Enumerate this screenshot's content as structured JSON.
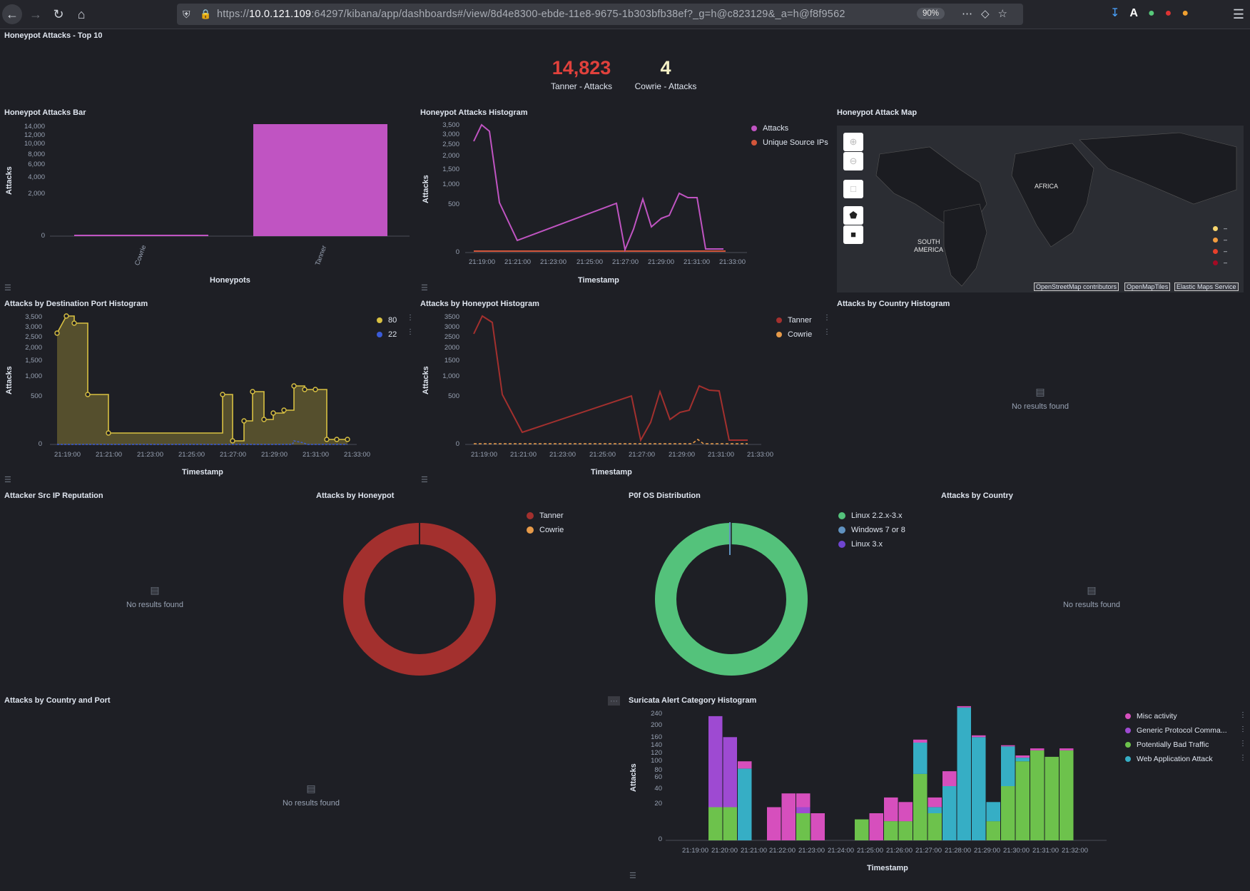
{
  "browser": {
    "url_prefix": "https://",
    "url_host": "10.0.121.109",
    "url_rest": ":64297/kibana/app/dashboards#/view/8d4e8300-ebde-11e8-9675-1b303bfb38ef?_g=h@c823129&_a=h@f8f9562",
    "zoom": "90%"
  },
  "top10": {
    "title": "Honeypot Attacks - Top 10",
    "metrics": [
      {
        "value": "14,823",
        "label": "Tanner - Attacks",
        "color": "#e0413c"
      },
      {
        "value": "4",
        "label": "Cowrie - Attacks",
        "color": "#f5f1c6"
      }
    ]
  },
  "bar_panel": {
    "title": "Honeypot Attacks Bar",
    "ylabel": "Attacks",
    "xlabel": "Honeypots",
    "yticks": [
      "14,000",
      "12,000",
      "10,000",
      "8,000",
      "6,000",
      "4,000",
      "2,000",
      "0"
    ],
    "xticks": [
      "Cowrie",
      "Tanner"
    ]
  },
  "hist_panel": {
    "title": "Honeypot Attacks Histogram",
    "ylabel": "Attacks",
    "xlabel": "Timestamp",
    "yticks": [
      "3,500",
      "3,000",
      "2,500",
      "2,000",
      "1,500",
      "1,000",
      "500",
      "0"
    ],
    "xticks": [
      "21:19:00",
      "21:21:00",
      "21:23:00",
      "21:25:00",
      "21:27:00",
      "21:29:00",
      "21:31:00",
      "21:33:00"
    ],
    "legend": [
      "Attacks",
      "Unique Source IPs"
    ]
  },
  "map_panel": {
    "title": "Honeypot Attack Map",
    "labels": {
      "africa": "AFRICA",
      "south_america_1": "SOUTH",
      "south_america_2": "AMERICA"
    },
    "legend_dash": "–",
    "attribution": [
      "OpenStreetMap contributors",
      "OpenMapTiles",
      "Elastic Maps Service"
    ]
  },
  "port_panel": {
    "title": "Attacks by Destination Port Histogram",
    "ylabel": "Attacks",
    "xlabel": "Timestamp",
    "yticks": [
      "3,500",
      "3,000",
      "2,500",
      "2,000",
      "1,500",
      "1,000",
      "500",
      "0"
    ],
    "xticks": [
      "21:19:00",
      "21:21:00",
      "21:23:00",
      "21:25:00",
      "21:27:00",
      "21:29:00",
      "21:31:00",
      "21:33:00"
    ],
    "legend": [
      "80",
      "22"
    ]
  },
  "honeypot_hist_panel": {
    "title": "Attacks by Honeypot Histogram",
    "ylabel": "Attacks",
    "xlabel": "Timestamp",
    "yticks": [
      "3500",
      "3000",
      "2500",
      "2000",
      "1500",
      "1,000",
      "500",
      "0"
    ],
    "xticks": [
      "21:19:00",
      "21:21:00",
      "21:23:00",
      "21:25:00",
      "21:27:00",
      "21:29:00",
      "21:31:00",
      "21:33:00"
    ],
    "legend": [
      "Tanner",
      "Cowrie"
    ]
  },
  "country_hist_panel": {
    "title": "Attacks by Country Histogram",
    "no_results": "No results found"
  },
  "reputation_panel": {
    "title": "Attacker Src IP Reputation",
    "no_results": "No results found"
  },
  "honeypot_donut": {
    "title": "Attacks by Honeypot",
    "legend": [
      "Tanner",
      "Cowrie"
    ]
  },
  "p0f_donut": {
    "title": "P0f OS Distribution",
    "legend": [
      "Linux 2.2.x-3.x",
      "Windows 7 or 8",
      "Linux 3.x"
    ]
  },
  "country_panel": {
    "title": "Attacks by Country",
    "no_results": "No results found"
  },
  "country_port_panel": {
    "title": "Attacks by Country and Port",
    "no_results": "No results found"
  },
  "suricata_panel": {
    "title": "Suricata Alert Category Histogram",
    "ylabel": "Attacks",
    "xlabel": "Timestamp",
    "yticks": [
      "240",
      "200",
      "160",
      "140",
      "120",
      "100",
      "80",
      "60",
      "40",
      "20",
      "0"
    ],
    "xticks": [
      "21:19:00",
      "21:20:00",
      "21:21:00",
      "21:22:00",
      "21:23:00",
      "21:24:00",
      "21:25:00",
      "21:26:00",
      "21:27:00",
      "21:28:00",
      "21:29:00",
      "21:30:00",
      "21:31:00",
      "21:32:00"
    ],
    "legend": [
      "Misc activity",
      "Generic Protocol Comma...",
      "Potentially Bad Traffic",
      "Web Application Attack"
    ]
  },
  "colors": {
    "attacks_pink": "#c054c2",
    "unique_ips": "#d2553a",
    "port80": "#d8c042",
    "port22": "#3a5bd8",
    "tanner": "#a3302e",
    "cowrie": "#e69a49",
    "linux22": "#54c27b",
    "win78": "#6092c0",
    "linux3": "#6f45d0",
    "misc": "#d64fbd",
    "generic": "#9e4ad2",
    "bad_traffic": "#6dc24c",
    "web_attack": "#36aec5"
  },
  "chart_data": [
    {
      "type": "bar",
      "title": "Honeypot Attacks Bar",
      "categories": [
        "Cowrie",
        "Tanner"
      ],
      "values": [
        4,
        14823
      ],
      "xlabel": "Honeypots",
      "ylabel": "Attacks",
      "ylim": [
        0,
        14823
      ]
    },
    {
      "type": "line",
      "title": "Honeypot Attacks Histogram",
      "xlabel": "Timestamp",
      "ylabel": "Attacks",
      "x": [
        "21:19:00",
        "21:19:30",
        "21:20:00",
        "21:20:30",
        "21:21:00",
        "21:26:30",
        "21:27:00",
        "21:27:30",
        "21:28:00",
        "21:28:30",
        "21:29:00",
        "21:29:30",
        "21:30:00",
        "21:30:30",
        "21:31:00",
        "21:31:30",
        "21:32:00"
      ],
      "series": [
        {
          "name": "Attacks",
          "values": [
            2650,
            3500,
            3200,
            500,
            60,
            510,
            20,
            130,
            520,
            200,
            300,
            340,
            700,
            630,
            630,
            60,
            60
          ]
        },
        {
          "name": "Unique Source IPs",
          "values": [
            15,
            15,
            15,
            15,
            15,
            15,
            15,
            15,
            15,
            15,
            15,
            15,
            15,
            15,
            15,
            15,
            15
          ]
        }
      ]
    },
    {
      "type": "area",
      "title": "Attacks by Destination Port Histogram",
      "xlabel": "Timestamp",
      "ylabel": "Attacks",
      "x": [
        "21:18:30",
        "21:19:00",
        "21:19:30",
        "21:20:00",
        "21:21:00",
        "21:26:30",
        "21:27:00",
        "21:27:30",
        "21:28:00",
        "21:28:30",
        "21:29:00",
        "21:29:30",
        "21:30:00",
        "21:30:30",
        "21:31:00",
        "21:31:30",
        "21:32:00"
      ],
      "series": [
        {
          "name": "80",
          "values": [
            2700,
            3500,
            3200,
            500,
            110,
            540,
            20,
            220,
            580,
            230,
            300,
            330,
            730,
            670,
            640,
            30,
            30
          ]
        },
        {
          "name": "22",
          "values": [
            0,
            0,
            0,
            0,
            0,
            0,
            0,
            0,
            0,
            0,
            0,
            0,
            4,
            0,
            0,
            0,
            0
          ]
        }
      ]
    },
    {
      "type": "line",
      "title": "Attacks by Honeypot Histogram",
      "xlabel": "Timestamp",
      "ylabel": "Attacks",
      "x": [
        "21:19:00",
        "21:19:30",
        "21:20:00",
        "21:20:30",
        "21:21:00",
        "21:26:30",
        "21:27:00",
        "21:27:30",
        "21:28:00",
        "21:28:30",
        "21:29:00",
        "21:29:30",
        "21:30:00",
        "21:30:30",
        "21:31:00",
        "21:31:30",
        "21:32:00"
      ],
      "series": [
        {
          "name": "Tanner",
          "values": [
            2650,
            3500,
            3200,
            500,
            100,
            510,
            20,
            200,
            600,
            240,
            330,
            360,
            730,
            660,
            650,
            30,
            30
          ]
        },
        {
          "name": "Cowrie",
          "values": [
            0,
            0,
            0,
            0,
            0,
            0,
            0,
            0,
            0,
            0,
            0,
            0,
            4,
            0,
            0,
            0,
            0
          ]
        }
      ]
    },
    {
      "type": "pie",
      "title": "Attacks by Honeypot",
      "categories": [
        "Tanner",
        "Cowrie"
      ],
      "values": [
        14823,
        4
      ]
    },
    {
      "type": "pie",
      "title": "P0f OS Distribution",
      "categories": [
        "Linux 2.2.x-3.x",
        "Windows 7 or 8",
        "Linux 3.x"
      ],
      "values": [
        99,
        0.5,
        0.5
      ]
    },
    {
      "type": "bar",
      "stacked": true,
      "title": "Suricata Alert Category Histogram",
      "xlabel": "Timestamp",
      "ylabel": "Attacks",
      "categories": [
        "21:19:30",
        "21:20:00",
        "21:20:30",
        "21:21:00",
        "21:21:30",
        "21:22:00",
        "21:22:30",
        "21:23:00",
        "21:24:30",
        "21:25:00",
        "21:25:30",
        "21:26:00",
        "21:26:30",
        "21:27:00",
        "21:27:30",
        "21:28:00",
        "21:28:30",
        "21:29:00",
        "21:29:30",
        "21:30:00",
        "21:30:30",
        "21:31:00",
        "21:31:30"
      ],
      "series": [
        {
          "name": "Misc activity",
          "values": [
            0,
            0,
            15,
            0,
            15,
            30,
            15,
            10,
            0,
            10,
            20,
            15,
            8,
            10,
            25,
            5,
            5,
            0,
            3,
            5,
            5,
            0,
            5
          ]
        },
        {
          "name": "Generic Protocol Comma...",
          "values": [
            195,
            130,
            0,
            0,
            0,
            0,
            5,
            0,
            0,
            0,
            0,
            0,
            0,
            0,
            0,
            0,
            0,
            0,
            0,
            0,
            0,
            0,
            0
          ]
        },
        {
          "name": "Potentially Bad Traffic",
          "values": [
            15,
            15,
            0,
            0,
            0,
            0,
            10,
            0,
            6,
            0,
            5,
            5,
            60,
            10,
            0,
            0,
            0,
            5,
            40,
            85,
            110,
            95,
            110
          ]
        },
        {
          "name": "Web Application Attack",
          "values": [
            0,
            0,
            70,
            0,
            0,
            0,
            0,
            0,
            0,
            0,
            0,
            0,
            70,
            5,
            40,
            240,
            145,
            15,
            80,
            8,
            0,
            0,
            0
          ]
        }
      ]
    }
  ]
}
